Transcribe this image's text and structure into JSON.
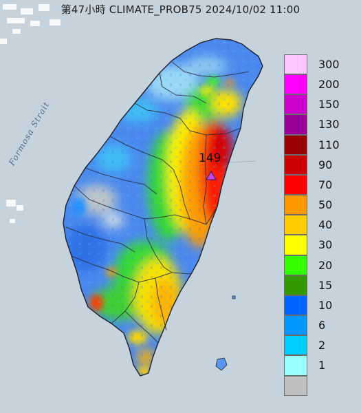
{
  "header": {
    "title": "第47小時  CLIMATE_PROB75 2024/10/02 11:00"
  },
  "map": {
    "sea_label": "Formosa Strait",
    "peak_value": "149",
    "colors": {
      "sea": "#c6d3dc",
      "land_bg": "#4b89ee",
      "boundary": "#2a2a3a",
      "peak_marker": "#c048ee"
    }
  },
  "legend": {
    "items": [
      {
        "label": "300",
        "color": "#ffc6ff"
      },
      {
        "label": "200",
        "color": "#ff00ff"
      },
      {
        "label": "150",
        "color": "#cc00cc"
      },
      {
        "label": "130",
        "color": "#990099"
      },
      {
        "label": "110",
        "color": "#990000"
      },
      {
        "label": "90",
        "color": "#cc0000"
      },
      {
        "label": "70",
        "color": "#ff0000"
      },
      {
        "label": "50",
        "color": "#ff9900"
      },
      {
        "label": "40",
        "color": "#ffcc00"
      },
      {
        "label": "30",
        "color": "#ffff00"
      },
      {
        "label": "20",
        "color": "#33ff00"
      },
      {
        "label": "15",
        "color": "#339900"
      },
      {
        "label": "10",
        "color": "#0066ff"
      },
      {
        "label": "6",
        "color": "#0099ff"
      },
      {
        "label": "2",
        "color": "#00ccff"
      },
      {
        "label": "1",
        "color": "#99ffff"
      },
      {
        "label": "",
        "color": "#c0c0c0"
      }
    ]
  }
}
